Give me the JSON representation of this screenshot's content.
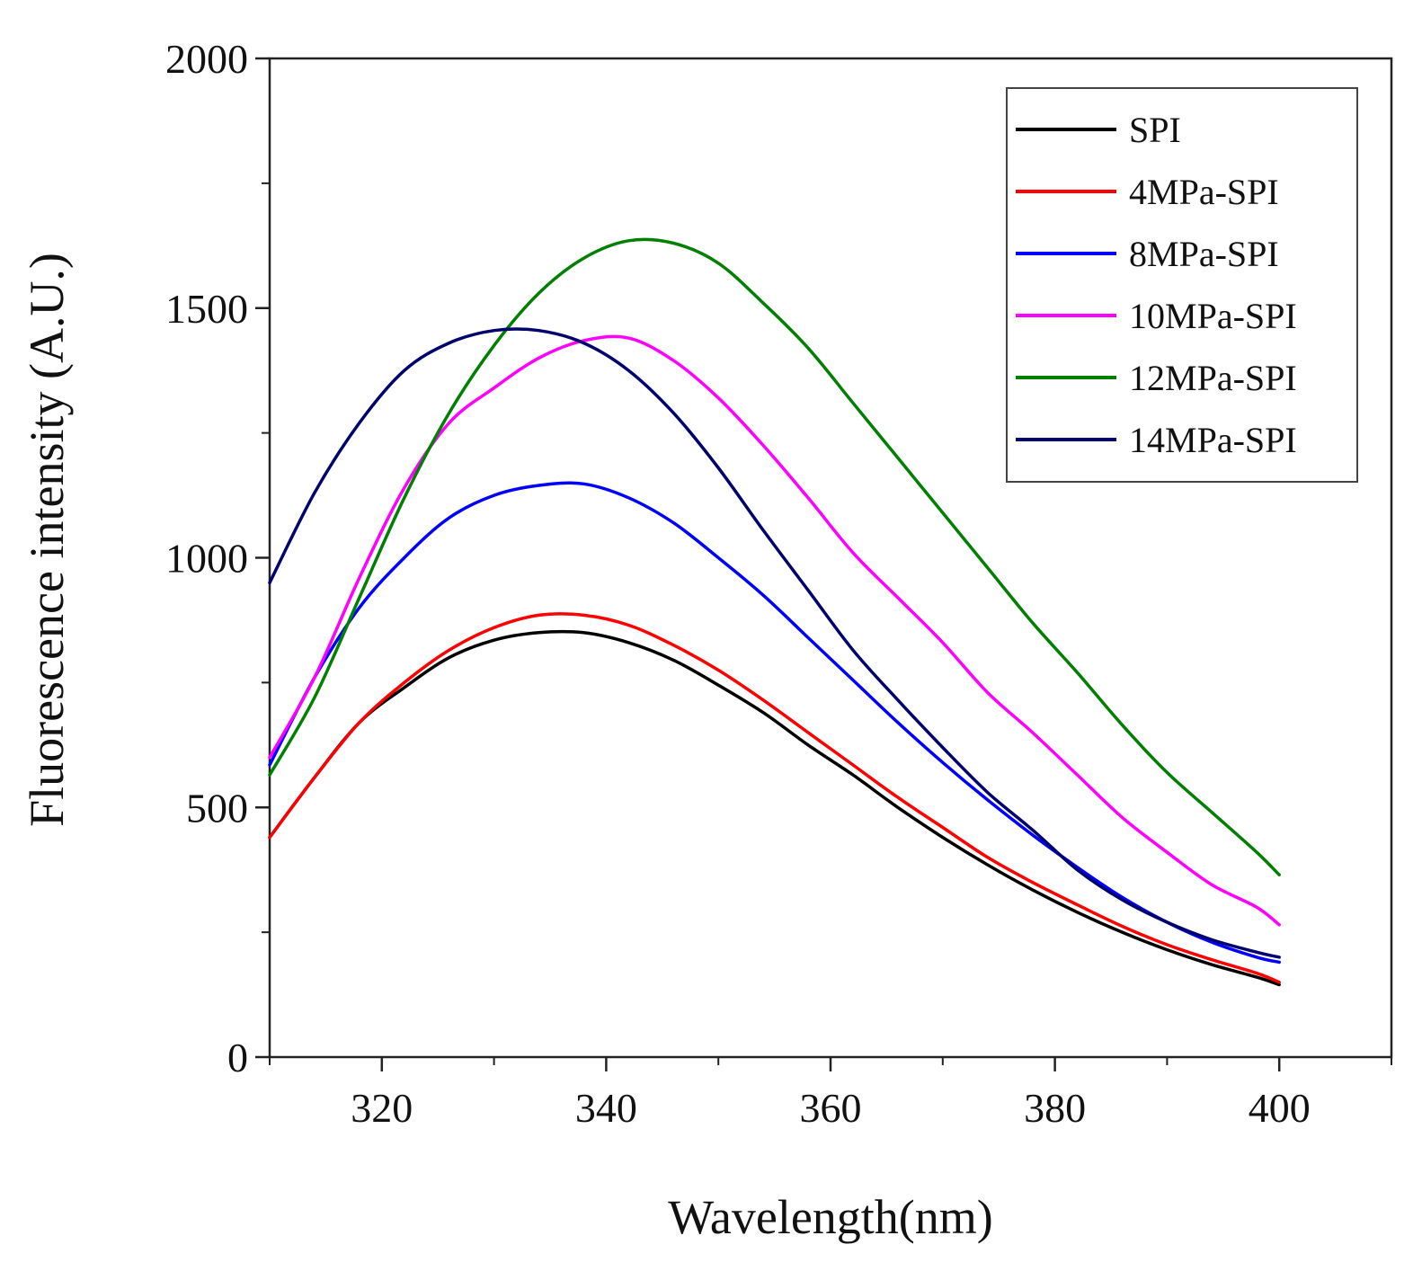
{
  "chart_data": {
    "type": "line",
    "title": "",
    "xlabel": "Wavelength(nm)",
    "ylabel": "Fluorescence intensity (A.U.)",
    "xlim": [
      310,
      410
    ],
    "ylim": [
      0,
      2000
    ],
    "xticks": [
      320,
      340,
      360,
      380,
      400
    ],
    "yticks": [
      0,
      500,
      1000,
      1500,
      2000
    ],
    "legend_position": "top-right",
    "series": [
      {
        "name": "SPI",
        "color": "#000000",
        "x": [
          310,
          314,
          318,
          322,
          326,
          330,
          334,
          338,
          342,
          346,
          350,
          354,
          358,
          362,
          366,
          370,
          374,
          378,
          382,
          386,
          390,
          394,
          398,
          400
        ],
        "values": [
          440,
          560,
          670,
          740,
          800,
          835,
          850,
          850,
          830,
          795,
          745,
          690,
          625,
          565,
          500,
          440,
          385,
          335,
          290,
          250,
          215,
          185,
          160,
          145
        ]
      },
      {
        "name": "4MPa-SPI",
        "color": "#ff0000",
        "x": [
          310,
          314,
          318,
          322,
          326,
          330,
          334,
          338,
          342,
          346,
          350,
          354,
          358,
          362,
          366,
          370,
          374,
          378,
          382,
          386,
          390,
          394,
          398,
          400
        ],
        "values": [
          440,
          560,
          670,
          750,
          815,
          860,
          885,
          885,
          865,
          825,
          775,
          715,
          650,
          585,
          520,
          460,
          400,
          350,
          305,
          262,
          225,
          195,
          168,
          150
        ]
      },
      {
        "name": "8MPa-SPI",
        "color": "#0000ff",
        "x": [
          310,
          314,
          318,
          322,
          326,
          330,
          334,
          338,
          342,
          346,
          350,
          354,
          358,
          362,
          366,
          370,
          374,
          378,
          382,
          386,
          390,
          394,
          398,
          400
        ],
        "values": [
          585,
          760,
          900,
          1000,
          1080,
          1125,
          1145,
          1148,
          1120,
          1070,
          1000,
          925,
          840,
          755,
          670,
          590,
          515,
          445,
          380,
          320,
          270,
          230,
          200,
          190
        ]
      },
      {
        "name": "10MPa-SPI",
        "color": "#ff00ff",
        "x": [
          310,
          314,
          318,
          322,
          326,
          330,
          334,
          338,
          342,
          346,
          350,
          354,
          358,
          362,
          366,
          370,
          374,
          378,
          382,
          386,
          390,
          394,
          398,
          400
        ],
        "values": [
          600,
          760,
          960,
          1140,
          1270,
          1340,
          1400,
          1435,
          1440,
          1395,
          1320,
          1225,
          1120,
          1010,
          920,
          830,
          730,
          650,
          565,
          480,
          410,
          345,
          300,
          265
        ]
      },
      {
        "name": "12MPa-SPI",
        "color": "#008000",
        "x": [
          310,
          314,
          318,
          322,
          326,
          330,
          334,
          338,
          342,
          346,
          350,
          354,
          358,
          362,
          366,
          370,
          374,
          378,
          382,
          386,
          390,
          394,
          398,
          400
        ],
        "values": [
          565,
          720,
          920,
          1120,
          1290,
          1425,
          1530,
          1600,
          1635,
          1630,
          1590,
          1510,
          1420,
          1310,
          1200,
          1090,
          980,
          870,
          770,
          665,
          570,
          490,
          410,
          365
        ]
      },
      {
        "name": "14MPa-SPI",
        "color": "#00006e",
        "x": [
          310,
          314,
          318,
          322,
          326,
          330,
          334,
          338,
          342,
          346,
          350,
          354,
          358,
          362,
          366,
          370,
          374,
          378,
          382,
          386,
          390,
          394,
          398,
          400
        ],
        "values": [
          950,
          1130,
          1270,
          1375,
          1430,
          1455,
          1455,
          1430,
          1375,
          1290,
          1180,
          1055,
          935,
          815,
          715,
          620,
          530,
          455,
          375,
          315,
          270,
          235,
          210,
          200
        ]
      }
    ]
  }
}
